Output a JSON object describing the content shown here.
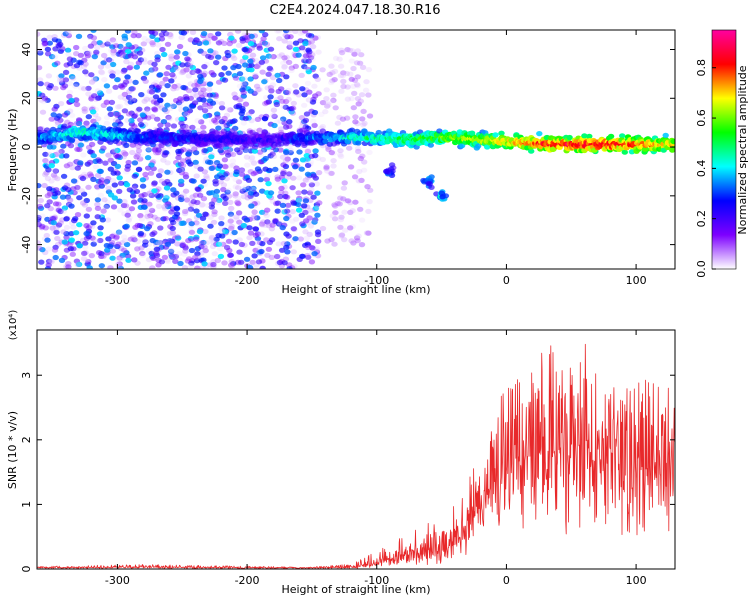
{
  "figure_title": "C2E4.2024.047.18.30.R16",
  "chart_data": [
    {
      "type": "heatmap",
      "xlabel": "Height of straight line (km)",
      "ylabel": "Frequency (Hz)",
      "xlim": [
        -362,
        130
      ],
      "ylim": [
        -50,
        48
      ],
      "x_ticks": [
        -300,
        -200,
        -100,
        0,
        100
      ],
      "y_ticks": [
        -40,
        -20,
        0,
        20,
        40
      ],
      "x_tick_labels": [
        "-300",
        "-200",
        "-100",
        "0",
        "100"
      ],
      "y_tick_labels": [
        "-40",
        "-20",
        "0",
        "20",
        "40"
      ],
      "colorbar": {
        "label": "Normalized spectral amplitude",
        "range": [
          0,
          0.95
        ],
        "ticks": [
          0.0,
          0.2,
          0.4,
          0.6,
          0.8
        ],
        "tick_labels": [
          "0.0",
          "0.2",
          "0.4",
          "0.6",
          "0.8"
        ],
        "colormap": [
          "#ffffff",
          "#7d00ff",
          "#0000ff",
          "#00ffff",
          "#00ff00",
          "#ffff00",
          "#ff0000",
          "#ff00a0"
        ]
      },
      "broadband_noise_region": {
        "x_range": [
          -362,
          -145
        ],
        "freq_range": [
          -50,
          48
        ]
      },
      "ridge": [
        {
          "x": -355,
          "freq": 4,
          "amp": 0.35
        },
        {
          "x": -330,
          "freq": 6,
          "amp": 0.45
        },
        {
          "x": -300,
          "freq": 5,
          "amp": 0.4
        },
        {
          "x": -280,
          "freq": 4,
          "amp": 0.3
        },
        {
          "x": -180,
          "freq": 3,
          "amp": 0.2
        },
        {
          "x": -140,
          "freq": 4,
          "amp": 0.35
        },
        {
          "x": -110,
          "freq": 4,
          "amp": 0.45
        },
        {
          "x": -80,
          "freq": 3,
          "amp": 0.5
        },
        {
          "x": -50,
          "freq": 4,
          "amp": 0.6
        },
        {
          "x": -20,
          "freq": 3,
          "amp": 0.65
        },
        {
          "x": 10,
          "freq": 2,
          "amp": 0.75
        },
        {
          "x": 40,
          "freq": 1,
          "amp": 0.85
        },
        {
          "x": 70,
          "freq": 1,
          "amp": 0.85
        },
        {
          "x": 100,
          "freq": 1,
          "amp": 0.8
        },
        {
          "x": 128,
          "freq": 1,
          "amp": 0.7
        }
      ],
      "secondary_features": [
        {
          "x": -90,
          "freq": -10,
          "amp": 0.3
        },
        {
          "x": -60,
          "freq": -15,
          "amp": 0.35
        },
        {
          "x": -50,
          "freq": -20,
          "amp": 0.4
        }
      ]
    },
    {
      "type": "line",
      "xlabel": "Height of straight line (km)",
      "ylabel": "SNR (10 * v/v)",
      "multiplier_label": "(x10⁴)",
      "xlim": [
        -362,
        130
      ],
      "ylim": [
        0,
        3.7
      ],
      "x_ticks": [
        -300,
        -200,
        -100,
        0,
        100
      ],
      "y_ticks": [
        0,
        1,
        2,
        3
      ],
      "x_tick_labels": [
        "-300",
        "-200",
        "-100",
        "0",
        "100"
      ],
      "y_tick_labels": [
        "0",
        "1",
        "2",
        "3"
      ],
      "series": [
        {
          "color": "#e8282a",
          "envelope": {
            "x": [
              -362,
              -280,
              -150,
              -120,
              -100,
              -80,
              -60,
              -50,
              -40,
              -30,
              -20,
              -10,
              0,
              20,
              40,
              60,
              80,
              100,
              130
            ],
            "mean": [
              0.02,
              0.03,
              0.02,
              0.03,
              0.1,
              0.22,
              0.3,
              0.25,
              0.4,
              0.7,
              0.9,
              1.3,
              1.6,
              1.7,
              1.85,
              1.9,
              1.8,
              1.75,
              1.7
            ],
            "peak": [
              0.04,
              0.07,
              0.03,
              0.08,
              0.3,
              0.5,
              0.75,
              0.6,
              1.0,
              1.5,
              1.9,
              2.5,
              2.8,
              3.2,
              3.6,
              3.5,
              3.0,
              2.9,
              3.1
            ],
            "trough": [
              0.0,
              0.0,
              0.0,
              0.0,
              0.0,
              0.02,
              0.03,
              0.03,
              0.05,
              0.15,
              0.3,
              0.4,
              0.5,
              0.5,
              0.4,
              0.5,
              0.5,
              0.2,
              0.3
            ]
          }
        }
      ]
    }
  ]
}
